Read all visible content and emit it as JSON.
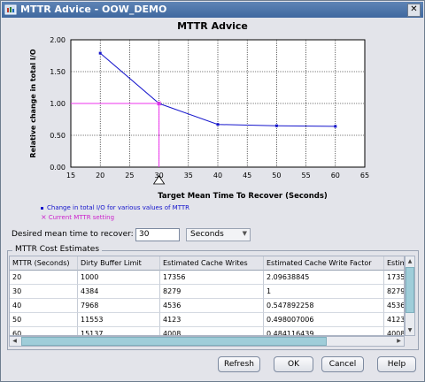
{
  "window": {
    "title": "MTTR Advice - OOW_DEMO",
    "close_label": "✕"
  },
  "colors": {
    "series": "#1515cc",
    "current": "#ee33ee",
    "titlebar": "#4f76aa",
    "scroll_thumb": "#9fcdd9"
  },
  "chart_data": {
    "type": "line",
    "title": "MTTR Advice",
    "xlabel": "Target Mean Time To Recover (Seconds)",
    "ylabel": "Relative change in total I/O",
    "xlim": [
      15,
      65
    ],
    "ylim": [
      0.0,
      2.0
    ],
    "xticks": [
      15,
      20,
      25,
      30,
      35,
      40,
      45,
      50,
      55,
      60,
      65
    ],
    "yticks": [
      0.0,
      0.5,
      1.0,
      1.5,
      2.0
    ],
    "ytick_labels": [
      "0.00",
      "0.50",
      "1.00",
      "1.50",
      "2.00"
    ],
    "grid": true,
    "series": [
      {
        "x": [
          20,
          30,
          40,
          50,
          60
        ],
        "values": [
          1.79,
          1.0,
          0.67,
          0.65,
          0.64
        ]
      }
    ],
    "current_setting": {
      "x": 30,
      "y": 1.0
    },
    "legend": [
      "Change in total I/O for various values of MTTR",
      "Current MTTR setting"
    ]
  },
  "controls": {
    "desired_label": "Desired mean time to recover:",
    "desired_value": "30",
    "unit_value": "Seconds",
    "arrow": "▼"
  },
  "table": {
    "group_label": "MTTR Cost Estimates",
    "columns": [
      "MTTR (Seconds)",
      "Dirty Buffer Limit",
      "Estimated Cache Writes",
      "Estimated Cache Write Factor",
      "Estim"
    ],
    "rows": [
      [
        "20",
        "1000",
        "17356",
        "2.09638845",
        "1735"
      ],
      [
        "30",
        "4384",
        "8279",
        "1",
        "8279"
      ],
      [
        "40",
        "7968",
        "4536",
        "0.547892258",
        "4536"
      ],
      [
        "50",
        "11553",
        "4123",
        "0.498007006",
        "4123"
      ],
      [
        "60",
        "15137",
        "4008",
        "0.484116439",
        "4008"
      ]
    ]
  },
  "scroll": {
    "up": "▲",
    "down": "▼",
    "left": "◀",
    "right": "▶"
  },
  "buttons": {
    "refresh": "Refresh",
    "ok": "OK",
    "cancel": "Cancel",
    "help": "Help"
  }
}
